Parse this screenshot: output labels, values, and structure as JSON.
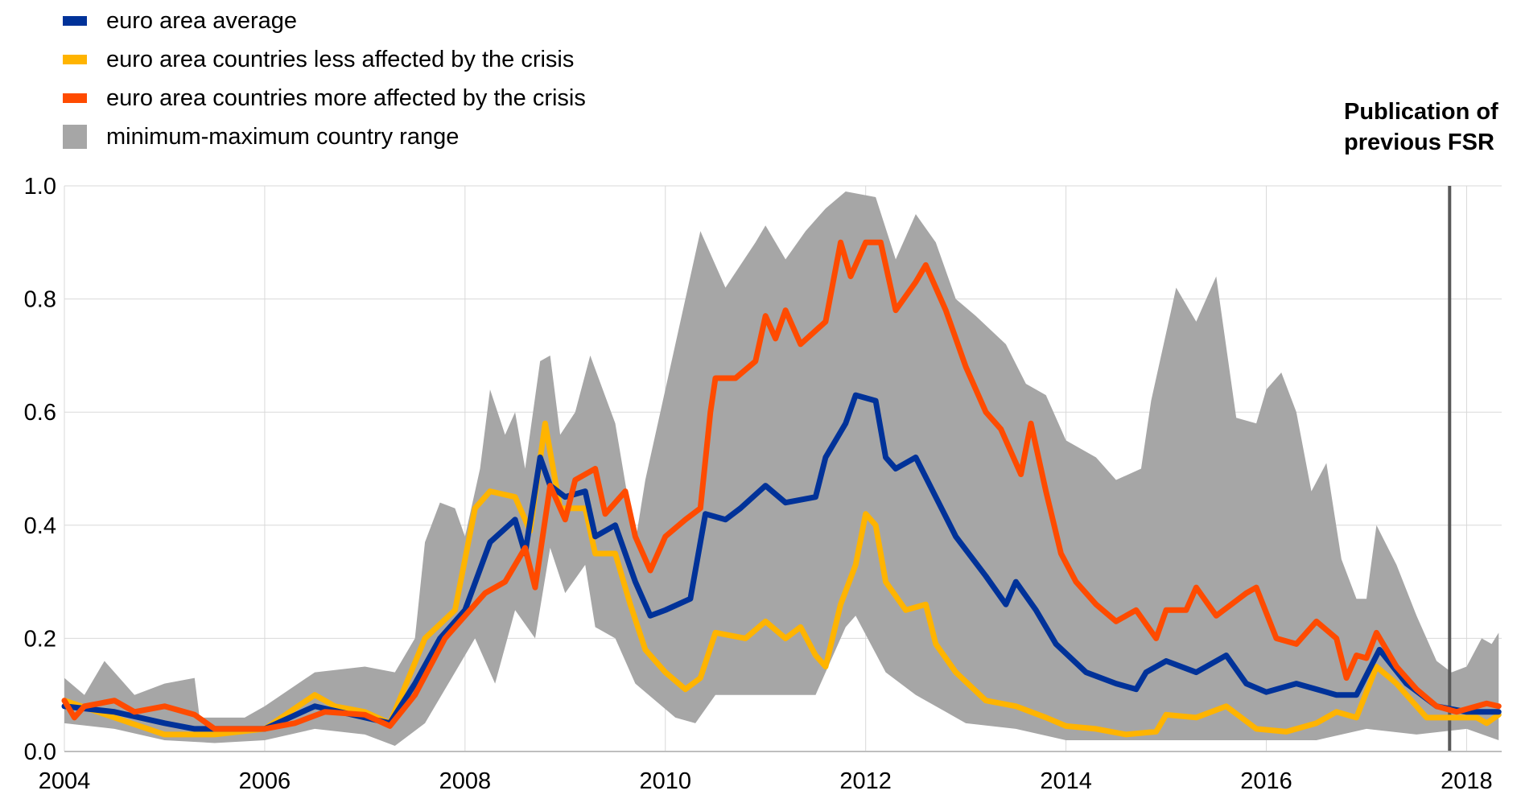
{
  "chart_data": {
    "type": "line",
    "title": "",
    "xlabel": "",
    "ylabel": "",
    "xlim": [
      2004.0,
      2018.35
    ],
    "ylim": [
      0.0,
      1.0
    ],
    "grid": true,
    "legend_placement": "top-left",
    "x_ticks": [
      "2004",
      "2006",
      "2008",
      "2010",
      "2012",
      "2014",
      "2016",
      "2018"
    ],
    "x_tick_values": [
      2004,
      2006,
      2008,
      2010,
      2012,
      2014,
      2016,
      2018
    ],
    "y_ticks": [
      "0.0",
      "0.2",
      "0.4",
      "0.6",
      "0.8",
      "1.0"
    ],
    "y_tick_values": [
      0,
      0.2,
      0.4,
      0.6,
      0.8,
      1.0
    ],
    "annotation": {
      "text_line1": "Publication of",
      "text_line2": "previous FSR",
      "x": 2017.83,
      "color": "#595959"
    },
    "band": {
      "name": "minimum-maximum country range",
      "color": "#a6a6a6",
      "max": {
        "x": [
          2004,
          2004.2,
          2004.4,
          2004.7,
          2005.0,
          2005.3,
          2005.35,
          2005.8,
          2006.0,
          2006.5,
          2007.0,
          2007.3,
          2007.5,
          2007.6,
          2007.75,
          2007.9,
          2008.0,
          2008.15,
          2008.25,
          2008.4,
          2008.5,
          2008.6,
          2008.75,
          2008.85,
          2008.95,
          2009.1,
          2009.25,
          2009.5,
          2009.7,
          2009.8,
          2010.0,
          2010.2,
          2010.35,
          2010.6,
          2010.9,
          2011.0,
          2011.2,
          2011.4,
          2011.6,
          2011.8,
          2012.1,
          2012.3,
          2012.5,
          2012.7,
          2012.9,
          2013.1,
          2013.4,
          2013.6,
          2013.8,
          2014.0,
          2014.3,
          2014.5,
          2014.75,
          2014.85,
          2015.1,
          2015.3,
          2015.5,
          2015.7,
          2015.9,
          2016.0,
          2016.15,
          2016.3,
          2016.45,
          2016.6,
          2016.75,
          2016.9,
          2017.0,
          2017.1,
          2017.3,
          2017.5,
          2017.7,
          2017.85,
          2018.0,
          2018.15,
          2018.25,
          2018.32
        ],
        "y": [
          0.13,
          0.1,
          0.16,
          0.1,
          0.12,
          0.13,
          0.06,
          0.06,
          0.08,
          0.14,
          0.15,
          0.14,
          0.2,
          0.37,
          0.44,
          0.43,
          0.38,
          0.5,
          0.64,
          0.56,
          0.6,
          0.5,
          0.69,
          0.7,
          0.56,
          0.6,
          0.7,
          0.58,
          0.37,
          0.48,
          0.64,
          0.8,
          0.92,
          0.82,
          0.9,
          0.93,
          0.87,
          0.92,
          0.96,
          0.99,
          0.98,
          0.87,
          0.95,
          0.9,
          0.8,
          0.77,
          0.72,
          0.65,
          0.63,
          0.55,
          0.52,
          0.48,
          0.5,
          0.62,
          0.82,
          0.76,
          0.84,
          0.59,
          0.58,
          0.64,
          0.67,
          0.6,
          0.46,
          0.51,
          0.34,
          0.27,
          0.27,
          0.4,
          0.33,
          0.24,
          0.16,
          0.14,
          0.15,
          0.2,
          0.19,
          0.21
        ]
      },
      "min": {
        "x": [
          2004,
          2004.5,
          2005.0,
          2005.5,
          2006.0,
          2006.5,
          2007.0,
          2007.3,
          2007.6,
          2007.9,
          2008.1,
          2008.3,
          2008.5,
          2008.7,
          2008.85,
          2009.0,
          2009.2,
          2009.3,
          2009.5,
          2009.7,
          2009.9,
          2010.1,
          2010.3,
          2010.5,
          2010.8,
          2011.0,
          2011.2,
          2011.5,
          2011.8,
          2011.9,
          2012.2,
          2012.5,
          2012.8,
          2013.0,
          2013.5,
          2014.0,
          2014.5,
          2015.0,
          2015.5,
          2016.0,
          2016.5,
          2017.0,
          2017.5,
          2018.0,
          2018.32
        ],
        "y": [
          0.05,
          0.04,
          0.02,
          0.015,
          0.02,
          0.04,
          0.03,
          0.01,
          0.05,
          0.14,
          0.2,
          0.12,
          0.25,
          0.2,
          0.36,
          0.28,
          0.33,
          0.22,
          0.2,
          0.12,
          0.09,
          0.06,
          0.05,
          0.1,
          0.1,
          0.1,
          0.1,
          0.1,
          0.22,
          0.24,
          0.14,
          0.1,
          0.07,
          0.05,
          0.04,
          0.02,
          0.02,
          0.02,
          0.02,
          0.02,
          0.02,
          0.04,
          0.03,
          0.04,
          0.02
        ]
      }
    },
    "series": [
      {
        "name": "euro area average",
        "color": "#003299",
        "x": [
          2004.0,
          2004.5,
          2005.0,
          2005.3,
          2005.5,
          2006.0,
          2006.5,
          2007.0,
          2007.25,
          2007.5,
          2007.75,
          2008.0,
          2008.25,
          2008.5,
          2008.6,
          2008.75,
          2008.85,
          2009.0,
          2009.2,
          2009.3,
          2009.5,
          2009.7,
          2009.85,
          2010.0,
          2010.25,
          2010.4,
          2010.6,
          2010.75,
          2011.0,
          2011.2,
          2011.5,
          2011.6,
          2011.8,
          2011.9,
          2012.1,
          2012.2,
          2012.3,
          2012.5,
          2012.7,
          2012.9,
          2013.2,
          2013.4,
          2013.5,
          2013.7,
          2013.9,
          2014.2,
          2014.5,
          2014.7,
          2014.8,
          2015.0,
          2015.3,
          2015.6,
          2015.8,
          2016.0,
          2016.3,
          2016.5,
          2016.7,
          2016.9,
          2017.13,
          2017.4,
          2017.7,
          2018.0,
          2018.32
        ],
        "y": [
          0.08,
          0.07,
          0.05,
          0.04,
          0.04,
          0.04,
          0.08,
          0.06,
          0.05,
          0.12,
          0.2,
          0.25,
          0.37,
          0.41,
          0.35,
          0.52,
          0.47,
          0.45,
          0.46,
          0.38,
          0.4,
          0.3,
          0.24,
          0.25,
          0.27,
          0.42,
          0.41,
          0.43,
          0.47,
          0.44,
          0.45,
          0.52,
          0.58,
          0.63,
          0.62,
          0.52,
          0.5,
          0.52,
          0.45,
          0.38,
          0.31,
          0.26,
          0.3,
          0.25,
          0.19,
          0.14,
          0.12,
          0.11,
          0.14,
          0.16,
          0.14,
          0.17,
          0.12,
          0.105,
          0.12,
          0.11,
          0.1,
          0.1,
          0.18,
          0.12,
          0.08,
          0.07,
          0.07
        ]
      },
      {
        "name": "euro area countries less affected by the crisis",
        "color": "#ffb400",
        "x": [
          2004.0,
          2004.5,
          2005.0,
          2005.5,
          2006.0,
          2006.5,
          2006.7,
          2007.0,
          2007.25,
          2007.6,
          2007.9,
          2008.1,
          2008.25,
          2008.5,
          2008.65,
          2008.8,
          2008.95,
          2009.2,
          2009.3,
          2009.5,
          2009.65,
          2009.8,
          2010.0,
          2010.2,
          2010.35,
          2010.5,
          2010.8,
          2011.0,
          2011.2,
          2011.35,
          2011.5,
          2011.6,
          2011.75,
          2011.9,
          2012.0,
          2012.1,
          2012.2,
          2012.4,
          2012.6,
          2012.7,
          2012.9,
          2013.2,
          2013.5,
          2013.8,
          2014.0,
          2014.3,
          2014.6,
          2014.9,
          2015.0,
          2015.3,
          2015.6,
          2015.9,
          2016.2,
          2016.5,
          2016.7,
          2016.9,
          2017.1,
          2017.3,
          2017.6,
          2017.9,
          2018.1,
          2018.2,
          2018.32
        ],
        "y": [
          0.09,
          0.06,
          0.03,
          0.03,
          0.04,
          0.1,
          0.08,
          0.07,
          0.05,
          0.2,
          0.25,
          0.43,
          0.46,
          0.45,
          0.39,
          0.58,
          0.43,
          0.43,
          0.35,
          0.35,
          0.26,
          0.18,
          0.14,
          0.11,
          0.13,
          0.21,
          0.2,
          0.23,
          0.2,
          0.22,
          0.17,
          0.15,
          0.26,
          0.33,
          0.42,
          0.4,
          0.3,
          0.25,
          0.26,
          0.19,
          0.14,
          0.09,
          0.08,
          0.06,
          0.045,
          0.04,
          0.03,
          0.035,
          0.065,
          0.06,
          0.08,
          0.04,
          0.035,
          0.05,
          0.07,
          0.06,
          0.15,
          0.12,
          0.06,
          0.06,
          0.06,
          0.05,
          0.065
        ]
      },
      {
        "name": "euro area countries more affected by the crisis",
        "color": "#ff4b00",
        "x": [
          2004.0,
          2004.1,
          2004.2,
          2004.5,
          2004.7,
          2005.0,
          2005.3,
          2005.5,
          2006.0,
          2006.3,
          2006.6,
          2007.0,
          2007.25,
          2007.5,
          2007.8,
          2008.0,
          2008.2,
          2008.4,
          2008.6,
          2008.7,
          2008.85,
          2009.0,
          2009.1,
          2009.3,
          2009.4,
          2009.6,
          2009.7,
          2009.85,
          2010.0,
          2010.2,
          2010.35,
          2010.45,
          2010.5,
          2010.7,
          2010.9,
          2011.0,
          2011.1,
          2011.2,
          2011.35,
          2011.6,
          2011.75,
          2011.85,
          2012.0,
          2012.15,
          2012.3,
          2012.5,
          2012.6,
          2012.8,
          2013.0,
          2013.2,
          2013.35,
          2013.55,
          2013.65,
          2013.8,
          2013.95,
          2014.1,
          2014.3,
          2014.5,
          2014.7,
          2014.9,
          2015.0,
          2015.2,
          2015.3,
          2015.5,
          2015.8,
          2015.9,
          2016.1,
          2016.3,
          2016.5,
          2016.7,
          2016.8,
          2016.9,
          2017.0,
          2017.1,
          2017.3,
          2017.5,
          2017.7,
          2017.9,
          2018.1,
          2018.2,
          2018.32
        ],
        "y": [
          0.09,
          0.06,
          0.08,
          0.09,
          0.07,
          0.08,
          0.065,
          0.04,
          0.04,
          0.05,
          0.07,
          0.065,
          0.045,
          0.1,
          0.2,
          0.24,
          0.28,
          0.3,
          0.36,
          0.29,
          0.47,
          0.41,
          0.48,
          0.5,
          0.42,
          0.46,
          0.38,
          0.32,
          0.38,
          0.41,
          0.43,
          0.6,
          0.66,
          0.66,
          0.69,
          0.77,
          0.73,
          0.78,
          0.72,
          0.76,
          0.9,
          0.84,
          0.9,
          0.9,
          0.78,
          0.83,
          0.86,
          0.78,
          0.68,
          0.6,
          0.57,
          0.49,
          0.58,
          0.46,
          0.35,
          0.3,
          0.26,
          0.23,
          0.25,
          0.2,
          0.25,
          0.25,
          0.29,
          0.24,
          0.28,
          0.29,
          0.2,
          0.19,
          0.23,
          0.2,
          0.13,
          0.17,
          0.165,
          0.21,
          0.15,
          0.11,
          0.08,
          0.07,
          0.08,
          0.085,
          0.08
        ]
      }
    ]
  }
}
